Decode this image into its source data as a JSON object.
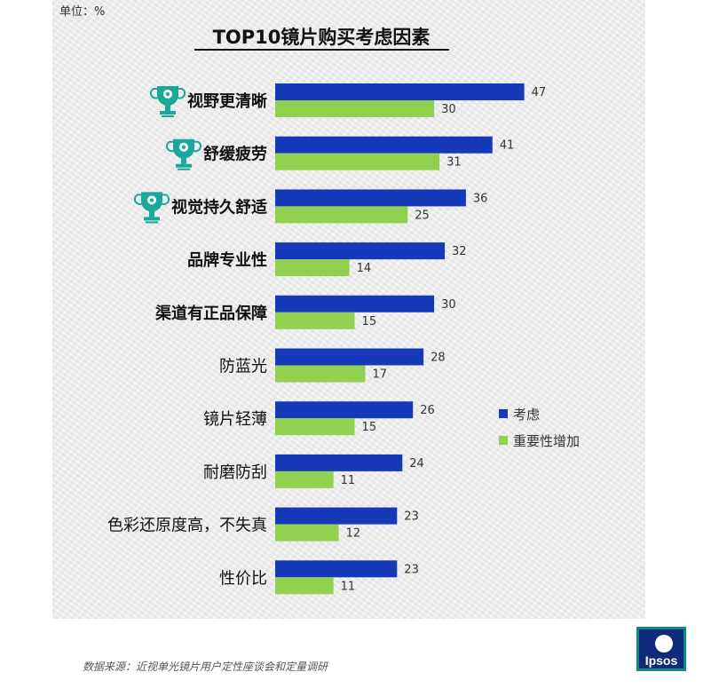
{
  "unit_label": "单位：%",
  "source": "数据来源：近视单光镜片用户定性座谈会和定量调研",
  "logo_text": "Ipsos",
  "colors": {
    "consider": "#1539b8",
    "increase": "#92d14f",
    "trophy": "#1aa89a"
  },
  "chart_data": {
    "type": "bar",
    "orientation": "horizontal",
    "title": "TOP10镜片购买考虑因素",
    "categories": [
      "视野更清晰",
      "舒缓疲劳",
      "视觉持久舒适",
      "品牌专业性",
      "渠道有正品保障",
      "防蓝光",
      "镜片轻薄",
      "耐磨防刮",
      "色彩还原度高，不失真",
      "性价比"
    ],
    "bold": [
      true,
      true,
      true,
      true,
      true,
      false,
      false,
      false,
      false,
      false
    ],
    "trophy": [
      true,
      true,
      true,
      false,
      false,
      false,
      false,
      false,
      false,
      false
    ],
    "series": [
      {
        "name": "考虑",
        "values": [
          47,
          41,
          36,
          32,
          30,
          28,
          26,
          24,
          23,
          23
        ]
      },
      {
        "name": "重要性增加",
        "values": [
          30,
          31,
          25,
          14,
          15,
          17,
          15,
          11,
          12,
          11
        ]
      }
    ],
    "xlim": [
      0,
      60
    ],
    "legend_position": "right",
    "grid": false
  }
}
